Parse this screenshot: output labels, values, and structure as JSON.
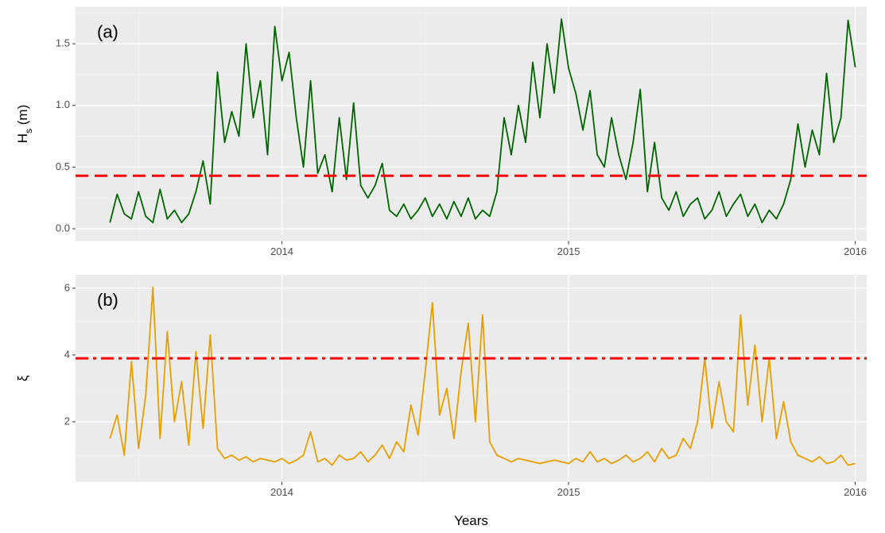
{
  "chart_data": [
    {
      "type": "line",
      "panel_label": "(a)",
      "ylabel": {
        "main": "H",
        "sub": "s",
        "rest": " (m)"
      },
      "xlim": [
        2013.28,
        2016.04
      ],
      "xticks": [
        2014,
        2015,
        2016
      ],
      "ylim": [
        -0.1,
        1.8
      ],
      "yticks": [
        {
          "value": 0,
          "label": "0.0"
        },
        0.5,
        {
          "value": 1,
          "label": "1.0"
        },
        1.5
      ],
      "grid": true,
      "color": "#006400",
      "hline": {
        "value": 0.43,
        "color": "#ff0000",
        "dash": "dashed"
      },
      "x": [
        2013.4,
        2013.425,
        2013.45,
        2013.475,
        2013.5,
        2013.525,
        2013.55,
        2013.575,
        2013.6,
        2013.625,
        2013.65,
        2013.675,
        2013.7,
        2013.725,
        2013.75,
        2013.775,
        2013.8,
        2013.825,
        2013.85,
        2013.875,
        2013.9,
        2013.925,
        2013.95,
        2013.975,
        2014.0,
        2014.025,
        2014.05,
        2014.075,
        2014.1,
        2014.125,
        2014.15,
        2014.175,
        2014.2,
        2014.225,
        2014.25,
        2014.275,
        2014.3,
        2014.325,
        2014.35,
        2014.375,
        2014.4,
        2014.425,
        2014.45,
        2014.475,
        2014.5,
        2014.525,
        2014.55,
        2014.575,
        2014.6,
        2014.625,
        2014.65,
        2014.675,
        2014.7,
        2014.725,
        2014.75,
        2014.775,
        2014.8,
        2014.825,
        2014.85,
        2014.875,
        2014.9,
        2014.925,
        2014.95,
        2014.975,
        2015.0,
        2015.025,
        2015.05,
        2015.075,
        2015.1,
        2015.125,
        2015.15,
        2015.175,
        2015.2,
        2015.225,
        2015.25,
        2015.275,
        2015.3,
        2015.325,
        2015.35,
        2015.375,
        2015.4,
        2015.425,
        2015.45,
        2015.475,
        2015.5,
        2015.525,
        2015.55,
        2015.575,
        2015.6,
        2015.625,
        2015.65,
        2015.675,
        2015.7,
        2015.725,
        2015.75,
        2015.775,
        2015.8,
        2015.825,
        2015.85,
        2015.875,
        2015.9,
        2015.925,
        2015.95,
        2015.975,
        2016.0
      ],
      "values": [
        0.05,
        0.28,
        0.12,
        0.08,
        0.3,
        0.1,
        0.05,
        0.32,
        0.08,
        0.15,
        0.05,
        0.12,
        0.3,
        0.55,
        0.2,
        1.27,
        0.7,
        0.95,
        0.75,
        1.5,
        0.9,
        1.2,
        0.6,
        1.64,
        1.2,
        1.43,
        0.9,
        0.5,
        1.2,
        0.45,
        0.6,
        0.3,
        0.9,
        0.4,
        1.02,
        0.35,
        0.25,
        0.35,
        0.53,
        0.15,
        0.1,
        0.2,
        0.08,
        0.15,
        0.25,
        0.1,
        0.2,
        0.08,
        0.22,
        0.1,
        0.25,
        0.08,
        0.15,
        0.1,
        0.3,
        0.9,
        0.6,
        1.0,
        0.7,
        1.35,
        0.9,
        1.5,
        1.1,
        1.7,
        1.3,
        1.1,
        0.8,
        1.12,
        0.6,
        0.5,
        0.9,
        0.6,
        0.4,
        0.7,
        1.13,
        0.3,
        0.7,
        0.25,
        0.15,
        0.3,
        0.1,
        0.2,
        0.25,
        0.08,
        0.15,
        0.3,
        0.1,
        0.2,
        0.28,
        0.1,
        0.2,
        0.05,
        0.15,
        0.08,
        0.2,
        0.4,
        0.85,
        0.5,
        0.8,
        0.6,
        1.26,
        0.7,
        0.9,
        1.69,
        1.31
      ]
    },
    {
      "type": "line",
      "panel_label": "(b)",
      "ylabel": {
        "main": "ξ"
      },
      "xlabel": "Years",
      "xlim": [
        2013.28,
        2016.04
      ],
      "xticks": [
        2014,
        2015,
        2016
      ],
      "ylim": [
        0.2,
        6.4
      ],
      "yticks": [
        2,
        4,
        6
      ],
      "grid": true,
      "color": "#e69f00",
      "hline": {
        "value": 3.9,
        "color": "#ff0000",
        "dash": "dashdot"
      },
      "x": [
        2013.4,
        2013.425,
        2013.45,
        2013.475,
        2013.5,
        2013.525,
        2013.55,
        2013.575,
        2013.6,
        2013.625,
        2013.65,
        2013.675,
        2013.7,
        2013.725,
        2013.75,
        2013.775,
        2013.8,
        2013.825,
        2013.85,
        2013.875,
        2013.9,
        2013.925,
        2013.95,
        2013.975,
        2014.0,
        2014.025,
        2014.05,
        2014.075,
        2014.1,
        2014.125,
        2014.15,
        2014.175,
        2014.2,
        2014.225,
        2014.25,
        2014.275,
        2014.3,
        2014.325,
        2014.35,
        2014.375,
        2014.4,
        2014.425,
        2014.45,
        2014.475,
        2014.5,
        2014.525,
        2014.55,
        2014.575,
        2014.6,
        2014.625,
        2014.65,
        2014.675,
        2014.7,
        2014.725,
        2014.75,
        2014.775,
        2014.8,
        2014.825,
        2014.85,
        2014.875,
        2014.9,
        2014.925,
        2014.95,
        2014.975,
        2015.0,
        2015.025,
        2015.05,
        2015.075,
        2015.1,
        2015.125,
        2015.15,
        2015.175,
        2015.2,
        2015.225,
        2015.25,
        2015.275,
        2015.3,
        2015.325,
        2015.35,
        2015.375,
        2015.4,
        2015.425,
        2015.45,
        2015.475,
        2015.5,
        2015.525,
        2015.55,
        2015.575,
        2015.6,
        2015.625,
        2015.65,
        2015.675,
        2015.7,
        2015.725,
        2015.75,
        2015.775,
        2015.8,
        2015.825,
        2015.85,
        2015.875,
        2015.9,
        2015.925,
        2015.95,
        2015.975,
        2016.0
      ],
      "values": [
        1.5,
        2.2,
        1.0,
        3.8,
        1.2,
        2.8,
        6.03,
        1.5,
        4.7,
        2.0,
        3.2,
        1.3,
        4.1,
        1.8,
        4.6,
        1.2,
        0.9,
        1.0,
        0.85,
        0.95,
        0.8,
        0.9,
        0.85,
        0.8,
        0.9,
        0.75,
        0.85,
        1.0,
        1.7,
        0.8,
        0.9,
        0.7,
        1.0,
        0.85,
        0.9,
        1.1,
        0.8,
        1.0,
        1.3,
        0.9,
        1.4,
        1.1,
        2.5,
        1.6,
        3.5,
        5.57,
        2.2,
        3.0,
        1.5,
        3.5,
        4.95,
        2.0,
        5.2,
        1.4,
        1.0,
        0.9,
        0.8,
        0.9,
        0.85,
        0.8,
        0.75,
        0.8,
        0.85,
        0.8,
        0.75,
        0.9,
        0.8,
        1.1,
        0.8,
        0.9,
        0.75,
        0.85,
        1.0,
        0.8,
        0.9,
        1.1,
        0.8,
        1.2,
        0.9,
        1.0,
        1.5,
        1.2,
        2.0,
        3.9,
        1.8,
        3.2,
        2.0,
        1.7,
        5.2,
        2.5,
        4.3,
        2.0,
        3.9,
        1.5,
        2.6,
        1.4,
        1.0,
        0.9,
        0.8,
        0.95,
        0.75,
        0.8,
        1.0,
        0.7,
        0.75
      ]
    }
  ]
}
